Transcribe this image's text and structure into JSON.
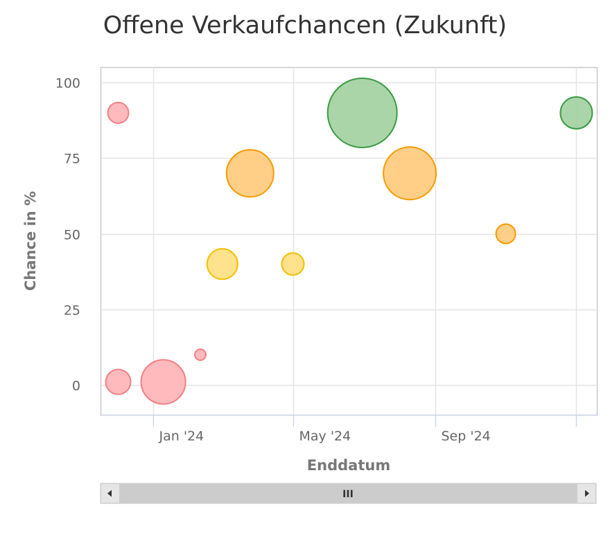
{
  "chart_data": {
    "type": "bubble",
    "title": "Offene Verkaufchancen (Zukunft)",
    "xlabel": "Enddatum",
    "ylabel": "Chance in %",
    "xlim": [
      "2023-11-17",
      "2025-01-19"
    ],
    "ylim": [
      -10,
      105
    ],
    "x_ticks": [
      {
        "date": "2024-01-01",
        "label": "Jan '24"
      },
      {
        "date": "2024-05-01",
        "label": "May '24"
      },
      {
        "date": "2024-09-01",
        "label": "Sep '24"
      },
      {
        "date": "2025-01-01",
        "label": ""
      }
    ],
    "y_ticks": [
      0,
      25,
      50,
      75,
      100
    ],
    "grid": true,
    "legend": "none",
    "points": [
      {
        "x": "2023-12-02",
        "y": 90,
        "z": 2.25,
        "color": "red"
      },
      {
        "x": "2023-12-02",
        "y": 1,
        "z": 3.24,
        "color": "red"
      },
      {
        "x": "2024-01-10",
        "y": 1,
        "z": 10.24,
        "color": "red"
      },
      {
        "x": "2024-02-11",
        "y": 10,
        "z": 0.64,
        "color": "red"
      },
      {
        "x": "2024-03-01",
        "y": 40,
        "z": 4.84,
        "color": "yellow"
      },
      {
        "x": "2024-03-25",
        "y": 70,
        "z": 11.56,
        "color": "orange"
      },
      {
        "x": "2024-05-01",
        "y": 40,
        "z": 2.56,
        "color": "yellow"
      },
      {
        "x": "2024-06-30",
        "y": 90,
        "z": 25,
        "color": "green"
      },
      {
        "x": "2024-08-10",
        "y": 70,
        "z": 14.44,
        "color": "orange"
      },
      {
        "x": "2024-11-01",
        "y": 50,
        "z": 1.96,
        "color": "orange"
      },
      {
        "x": "2025-01-01",
        "y": 90,
        "z": 5.29,
        "color": "green"
      }
    ],
    "palette": {
      "red": {
        "fill": "#ffb3b6",
        "stroke": "#f47f84"
      },
      "yellow": {
        "fill": "#ffdf7f",
        "stroke": "#f5be00"
      },
      "orange": {
        "fill": "#ffc97a",
        "stroke": "#f59b00"
      },
      "green": {
        "fill": "#a0d0a0",
        "stroke": "#3d9a43"
      }
    }
  },
  "scrollbar": {
    "grip_label": "III",
    "left_arrow": "◀",
    "right_arrow": "▶"
  }
}
